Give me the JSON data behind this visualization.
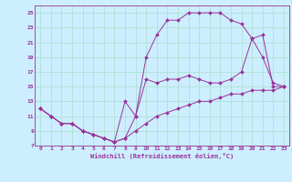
{
  "xlabel": "Windchill (Refroidissement éolien,°C)",
  "bg_color": "#cceeff",
  "grid_color": "#aaddcc",
  "line_color": "#993399",
  "xlim": [
    -0.5,
    23.5
  ],
  "ylim": [
    7,
    26
  ],
  "xticks": [
    0,
    1,
    2,
    3,
    4,
    5,
    6,
    7,
    8,
    9,
    10,
    11,
    12,
    13,
    14,
    15,
    16,
    17,
    18,
    19,
    20,
    21,
    22,
    23
  ],
  "yticks": [
    7,
    9,
    11,
    13,
    15,
    17,
    19,
    21,
    23,
    25
  ],
  "line1_x": [
    0,
    1,
    2,
    3,
    4,
    5,
    6,
    7,
    8,
    9,
    10,
    11,
    12,
    13,
    14,
    15,
    16,
    17,
    18,
    19,
    20,
    21,
    22,
    23
  ],
  "line1_y": [
    12,
    11,
    10,
    10,
    9,
    8.5,
    8,
    7.5,
    8,
    11,
    19,
    22,
    24,
    24,
    25,
    25,
    25,
    25,
    24,
    23.5,
    21.5,
    22,
    15,
    15
  ],
  "line2_x": [
    0,
    1,
    2,
    3,
    4,
    5,
    6,
    7,
    8,
    9,
    10,
    11,
    12,
    13,
    14,
    15,
    16,
    17,
    18,
    19,
    20,
    21,
    22,
    23
  ],
  "line2_y": [
    12,
    11,
    10,
    10,
    9,
    8.5,
    8,
    7.5,
    13,
    11,
    16,
    15.5,
    16,
    16,
    16.5,
    16,
    15.5,
    15.5,
    16,
    17,
    21.5,
    19,
    15.5,
    15
  ],
  "line3_x": [
    0,
    1,
    2,
    3,
    4,
    5,
    6,
    7,
    8,
    9,
    10,
    11,
    12,
    13,
    14,
    15,
    16,
    17,
    18,
    19,
    20,
    21,
    22,
    23
  ],
  "line3_y": [
    12,
    11,
    10,
    10,
    9,
    8.5,
    8,
    7.5,
    8,
    9,
    10,
    11,
    11.5,
    12,
    12.5,
    13,
    13,
    13.5,
    14,
    14,
    14.5,
    14.5,
    14.5,
    15
  ]
}
